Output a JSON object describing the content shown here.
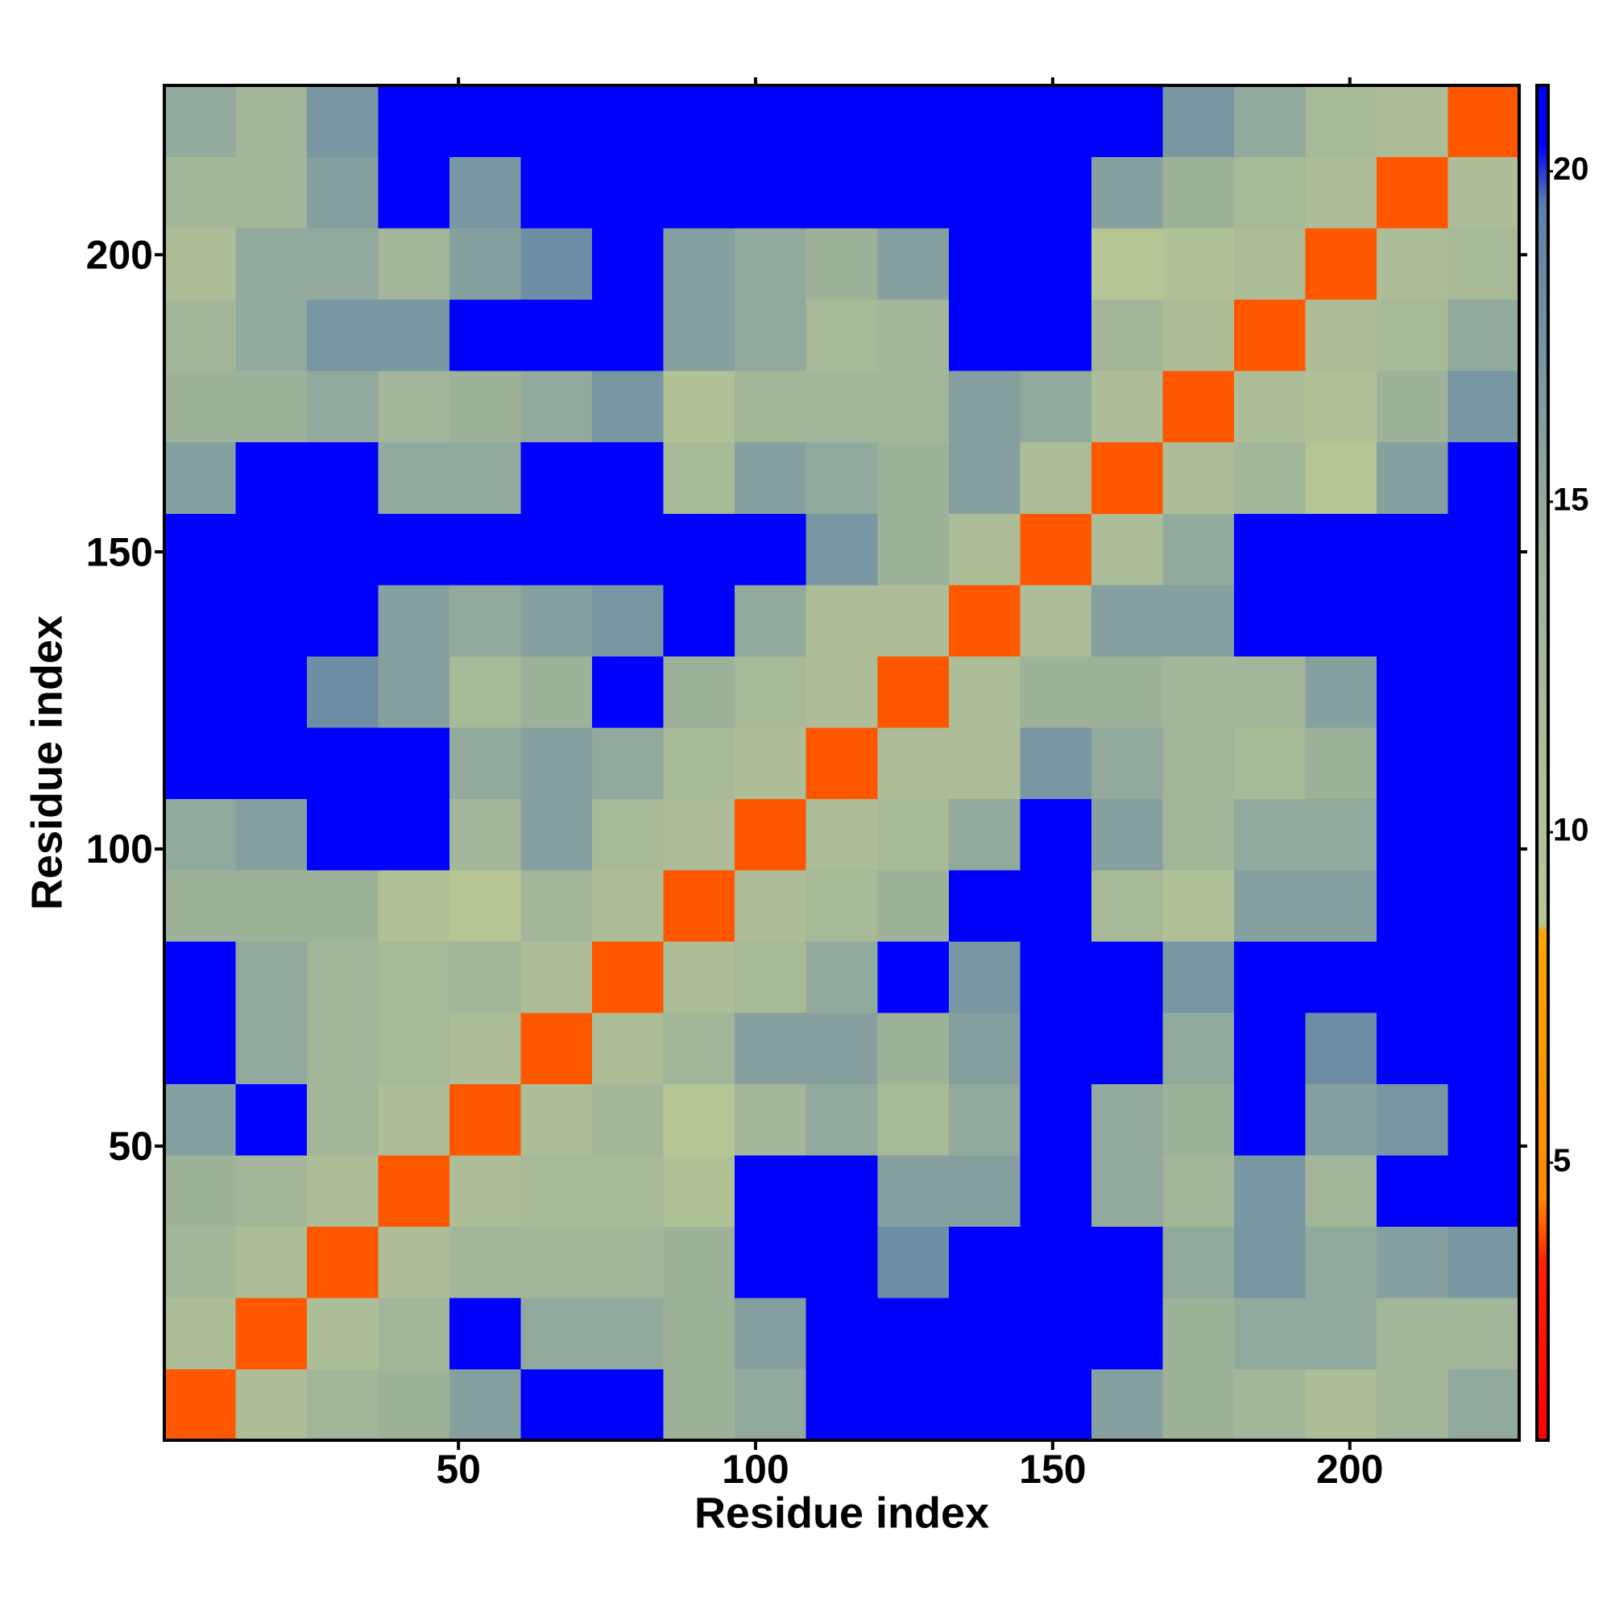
{
  "chart_data": {
    "type": "heatmap",
    "xlabel": "Residue index",
    "ylabel": "Residue index",
    "x_bins": [
      0.5,
      12.5,
      24.5,
      36.5,
      48.5,
      60.5,
      72.5,
      84.5,
      96.5,
      108.5,
      120.5,
      132.5,
      144.5,
      156.5,
      168.5,
      180.5,
      192.5,
      204.5,
      216.5,
      228.5
    ],
    "y_bins": [
      0.5,
      12.5,
      24.5,
      36.5,
      48.5,
      60.5,
      72.5,
      84.5,
      96.5,
      108.5,
      120.5,
      132.5,
      144.5,
      156.5,
      168.5,
      180.5,
      192.5,
      204.5,
      216.5,
      228.5
    ],
    "xlim": [
      0.5,
      228.5
    ],
    "ylim": [
      0.5,
      228.5
    ],
    "xticks": [
      50,
      100,
      150,
      200
    ],
    "yticks": [
      50,
      100,
      150,
      200
    ],
    "values": [
      [
        4,
        11,
        13,
        14,
        16,
        21,
        21,
        14,
        15,
        21,
        21,
        21,
        21,
        16,
        14,
        13,
        11,
        13,
        15
      ],
      [
        11,
        4,
        11,
        13,
        21,
        15,
        15,
        14,
        16,
        21,
        21,
        21,
        21,
        21,
        14,
        15,
        15,
        13,
        13
      ],
      [
        13,
        11,
        4,
        11,
        13,
        13,
        13,
        14,
        21,
        21,
        18,
        21,
        21,
        21,
        15,
        17,
        15,
        16,
        17
      ],
      [
        14,
        13,
        11,
        4,
        11,
        12,
        12,
        10,
        21,
        21,
        16,
        16,
        21,
        15,
        13,
        17,
        13,
        21,
        21
      ],
      [
        16,
        21,
        13,
        11,
        4,
        11,
        13,
        9,
        13,
        15,
        12,
        15,
        21,
        15,
        14,
        21,
        16,
        17,
        21
      ],
      [
        21,
        15,
        13,
        12,
        11,
        4,
        11,
        13,
        16,
        16,
        14,
        16,
        21,
        21,
        15,
        21,
        18,
        21,
        21
      ],
      [
        21,
        15,
        13,
        12,
        13,
        11,
        4,
        11,
        12,
        15,
        21,
        17,
        21,
        21,
        17,
        21,
        21,
        21,
        21
      ],
      [
        14,
        14,
        14,
        10,
        9,
        13,
        11,
        4,
        11,
        12,
        14,
        21,
        21,
        12,
        10,
        16,
        16,
        21,
        21
      ],
      [
        15,
        16,
        21,
        21,
        13,
        16,
        12,
        11,
        4,
        11,
        12,
        15,
        21,
        16,
        13,
        15,
        15,
        21,
        21
      ],
      [
        21,
        21,
        21,
        21,
        15,
        16,
        15,
        12,
        11,
        4,
        11,
        11,
        17,
        15,
        13,
        12,
        14,
        21,
        21
      ],
      [
        21,
        21,
        18,
        16,
        12,
        14,
        21,
        14,
        12,
        11,
        4,
        11,
        14,
        14,
        13,
        13,
        16,
        21,
        21
      ],
      [
        21,
        21,
        21,
        16,
        15,
        16,
        17,
        21,
        15,
        11,
        11,
        4,
        11,
        16,
        16,
        21,
        21,
        21,
        21
      ],
      [
        21,
        21,
        21,
        21,
        21,
        21,
        21,
        21,
        21,
        17,
        14,
        11,
        4,
        11,
        15,
        21,
        21,
        21,
        21
      ],
      [
        16,
        21,
        21,
        15,
        15,
        21,
        21,
        12,
        16,
        15,
        14,
        16,
        11,
        4,
        11,
        13,
        9,
        16,
        21
      ],
      [
        14,
        14,
        15,
        13,
        14,
        15,
        17,
        10,
        13,
        13,
        13,
        16,
        15,
        11,
        4,
        11,
        10,
        14,
        17
      ],
      [
        13,
        15,
        17,
        17,
        21,
        21,
        21,
        16,
        15,
        12,
        13,
        21,
        21,
        13,
        11,
        4,
        11,
        12,
        15
      ],
      [
        11,
        15,
        15,
        13,
        16,
        18,
        21,
        16,
        15,
        14,
        16,
        21,
        21,
        9,
        10,
        11,
        4,
        11,
        12
      ],
      [
        13,
        13,
        16,
        21,
        17,
        21,
        21,
        21,
        21,
        21,
        21,
        21,
        21,
        16,
        14,
        12,
        11,
        4,
        11
      ],
      [
        15,
        13,
        17,
        21,
        21,
        21,
        21,
        21,
        21,
        21,
        21,
        21,
        21,
        21,
        17,
        15,
        12,
        11,
        4
      ]
    ],
    "colorbar": {
      "zlim": [
        0.8,
        21.3
      ],
      "ticks": [
        5,
        10,
        15,
        20
      ]
    },
    "colorscale": [
      {
        "value": 0.8,
        "color": "#ff0000"
      },
      {
        "value": 3.5,
        "color": "#ff2200"
      },
      {
        "value": 4.5,
        "color": "#ff8c00"
      },
      {
        "value": 8.5,
        "color": "#ffa500"
      },
      {
        "value": 8.6,
        "color": "#b8c694"
      },
      {
        "value": 14,
        "color": "#9eb29a"
      },
      {
        "value": 19.5,
        "color": "#5b80a8"
      },
      {
        "value": 20.4,
        "color": "#0000ff"
      },
      {
        "value": 21.3,
        "color": "#0000ff"
      }
    ]
  }
}
